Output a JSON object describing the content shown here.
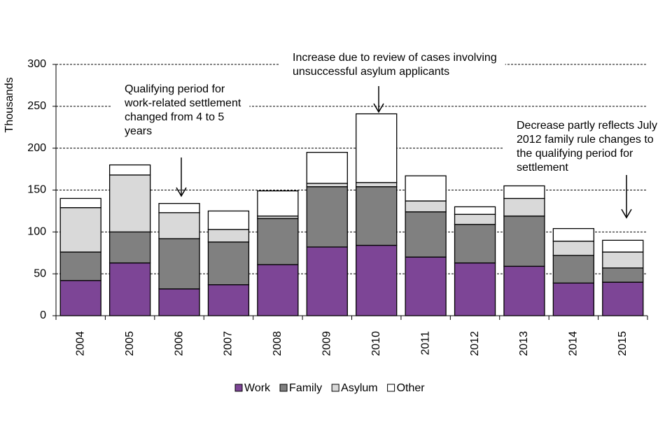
{
  "chart_data": {
    "type": "bar",
    "stacked": true,
    "y_label": "Thousands",
    "categories": [
      "2004",
      "2005",
      "2006",
      "2007",
      "2008",
      "2009",
      "2010",
      "2011",
      "2012",
      "2013",
      "2014",
      "2015"
    ],
    "series": [
      {
        "name": "Work",
        "color": "#7d4596",
        "values": [
          42,
          63,
          32,
          37,
          61,
          82,
          84,
          70,
          63,
          59,
          39,
          40
        ]
      },
      {
        "name": "Family",
        "color": "#808080",
        "values": [
          34,
          37,
          60,
          51,
          55,
          72,
          70,
          54,
          46,
          60,
          33,
          17
        ]
      },
      {
        "name": "Asylum",
        "color": "#d9d9d9",
        "values": [
          53,
          68,
          31,
          15,
          3,
          4,
          5,
          13,
          12,
          21,
          17,
          19
        ]
      },
      {
        "name": "Other",
        "color": "#ffffff",
        "values": [
          11,
          12,
          11,
          22,
          30,
          37,
          82,
          30,
          9,
          15,
          15,
          14
        ]
      }
    ],
    "ylim": [
      0,
      300
    ],
    "yticks": [
      0,
      50,
      100,
      150,
      200,
      250,
      300
    ],
    "grid": true,
    "annotations": [
      {
        "lines": [
          "Qualifying period for",
          "work-related settlement",
          "changed from 4 to 5",
          "years"
        ]
      },
      {
        "lines": [
          "Increase due to review  of cases involving",
          "unsuccessful asylum applicants"
        ]
      },
      {
        "lines": [
          "Decrease partly reflects July",
          "2012 family rule changes to",
          "the qualifying period for",
          "settlement"
        ]
      }
    ]
  }
}
